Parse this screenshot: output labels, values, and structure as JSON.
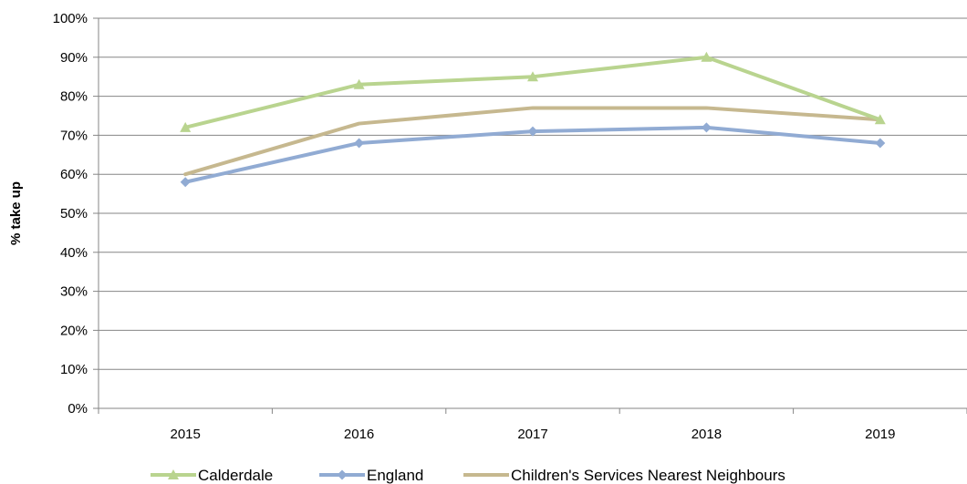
{
  "chart_data": {
    "type": "line",
    "categories": [
      "2015",
      "2016",
      "2017",
      "2018",
      "2019"
    ],
    "ylabel": "% take up",
    "ylim": [
      0,
      100
    ],
    "yticks": [
      "0%",
      "10%",
      "20%",
      "30%",
      "40%",
      "50%",
      "60%",
      "70%",
      "80%",
      "90%",
      "100%"
    ],
    "grid": true,
    "legend": "bottom",
    "series": [
      {
        "name": "Calderdale",
        "values": [
          72,
          83,
          85,
          90,
          74
        ],
        "color": "#b9d48f",
        "marker": "triangle"
      },
      {
        "name": "England",
        "values": [
          58,
          68,
          71,
          72,
          68
        ],
        "color": "#91abd3",
        "marker": "diamond"
      },
      {
        "name": "Children's Services Nearest Neighbours",
        "values": [
          60,
          73,
          77,
          77,
          74
        ],
        "color": "#c6b88f",
        "marker": "none"
      }
    ]
  }
}
